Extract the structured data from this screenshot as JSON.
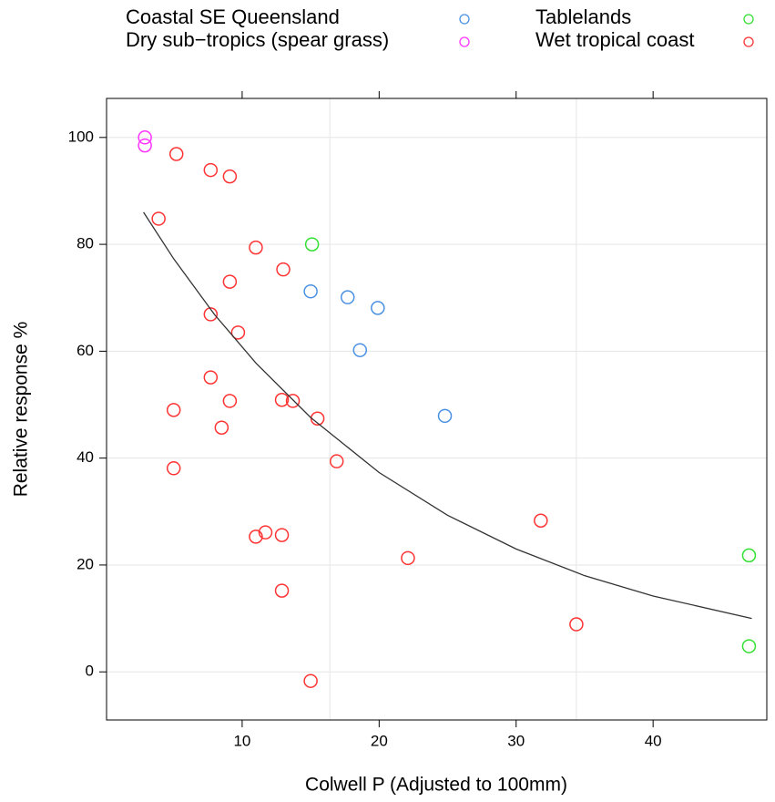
{
  "chart_data": {
    "type": "scatter",
    "x_label": "Colwell P (Adjusted to 100mm)",
    "y_label": "Relative response %",
    "xlim": [
      0.1,
      48.3
    ],
    "ylim": [
      -9,
      107.3
    ],
    "xticks": [
      10,
      20,
      30,
      40
    ],
    "yticks": [
      0,
      20,
      40,
      60,
      80,
      100
    ],
    "grid": true,
    "reference_x": [
      16.4,
      34.4
    ],
    "legend": "top",
    "series": [
      {
        "name": "Coastal SE Queensland",
        "color": "#4a90e2",
        "x": [
          15.0,
          17.7,
          19.9,
          18.6,
          24.8
        ],
        "values": [
          71.2,
          70.1,
          68.1,
          60.2,
          47.9
        ]
      },
      {
        "name": "Dry sub−tropics (spear grass)",
        "color": "#ff33ff",
        "x": [
          2.9,
          2.9
        ],
        "values": [
          100,
          98.5
        ]
      },
      {
        "name": "Tablelands",
        "color": "#33e033",
        "x": [
          15.1,
          47.0,
          47.0
        ],
        "values": [
          80.0,
          21.8,
          4.8
        ]
      },
      {
        "name": "Wet tropical coast",
        "color": "#ff3333",
        "x": [
          5.2,
          7.7,
          9.1,
          3.9,
          11.0,
          13.0,
          9.1,
          7.7,
          9.7,
          7.7,
          9.1,
          12.9,
          13.7,
          5.0,
          8.5,
          15.5,
          5.0,
          16.9,
          11.7,
          11.0,
          12.9,
          22.1,
          31.8,
          12.9,
          34.4,
          15.0
        ],
        "values": [
          96.9,
          93.9,
          92.7,
          84.8,
          79.4,
          75.3,
          73.0,
          66.9,
          63.5,
          55.1,
          50.7,
          50.9,
          50.7,
          49.0,
          45.7,
          47.4,
          38.1,
          39.4,
          26.1,
          25.3,
          25.6,
          21.3,
          28.3,
          15.2,
          8.9,
          -1.7
        ]
      }
    ],
    "curve": {
      "color": "#333333",
      "x": [
        2.8,
        5,
        8,
        11,
        15,
        20,
        25,
        30,
        35,
        40,
        47.2
      ],
      "values": [
        86.0,
        77.3,
        66.8,
        57.8,
        47.6,
        37.3,
        29.3,
        23.0,
        18.0,
        14.2,
        10.0
      ]
    }
  }
}
